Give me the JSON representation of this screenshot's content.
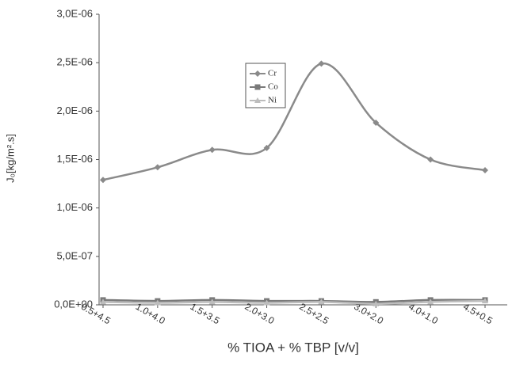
{
  "chart_data": {
    "type": "line",
    "y_label": "J₀[kg/m².s]",
    "x_label": "% TIOA + % TBP [v/v]",
    "categories": [
      "0.5+4.5",
      "1.0+4.0",
      "1.5+3.5",
      "2.0+3.0",
      "2.5+2.5",
      "3.0+2.0",
      "4.0+1.0",
      "4.5+0.5"
    ],
    "series": [
      {
        "name": "Cr",
        "color": "#8a8a8a",
        "marker": "diamond",
        "values": [
          1.29e-06,
          1.42e-06,
          1.6e-06,
          1.62e-06,
          2.49e-06,
          1.88e-06,
          1.5e-06,
          1.39e-06
        ]
      },
      {
        "name": "Co",
        "color": "#7a7a7a",
        "marker": "square",
        "values": [
          5e-08,
          4e-08,
          5e-08,
          4e-08,
          4e-08,
          3e-08,
          5e-08,
          5e-08
        ]
      },
      {
        "name": "Ni",
        "color": "#bdbdbd",
        "marker": "triangle",
        "values": [
          3e-08,
          2e-08,
          3e-08,
          2e-08,
          3e-08,
          1e-08,
          3e-08,
          4e-08
        ]
      }
    ],
    "ylim": [
      0,
      3e-06
    ],
    "yticks": [
      {
        "value": 0,
        "label": "0,0E+00"
      },
      {
        "value": 5e-07,
        "label": "5,0E-07"
      },
      {
        "value": 1e-06,
        "label": "1,0E-06"
      },
      {
        "value": 1.5e-06,
        "label": "1,5E-06"
      },
      {
        "value": 2e-06,
        "label": "2,0E-06"
      },
      {
        "value": 2.5e-06,
        "label": "2,5E-06"
      },
      {
        "value": 3e-06,
        "label": "3,0E-06"
      }
    ],
    "grid": false
  }
}
